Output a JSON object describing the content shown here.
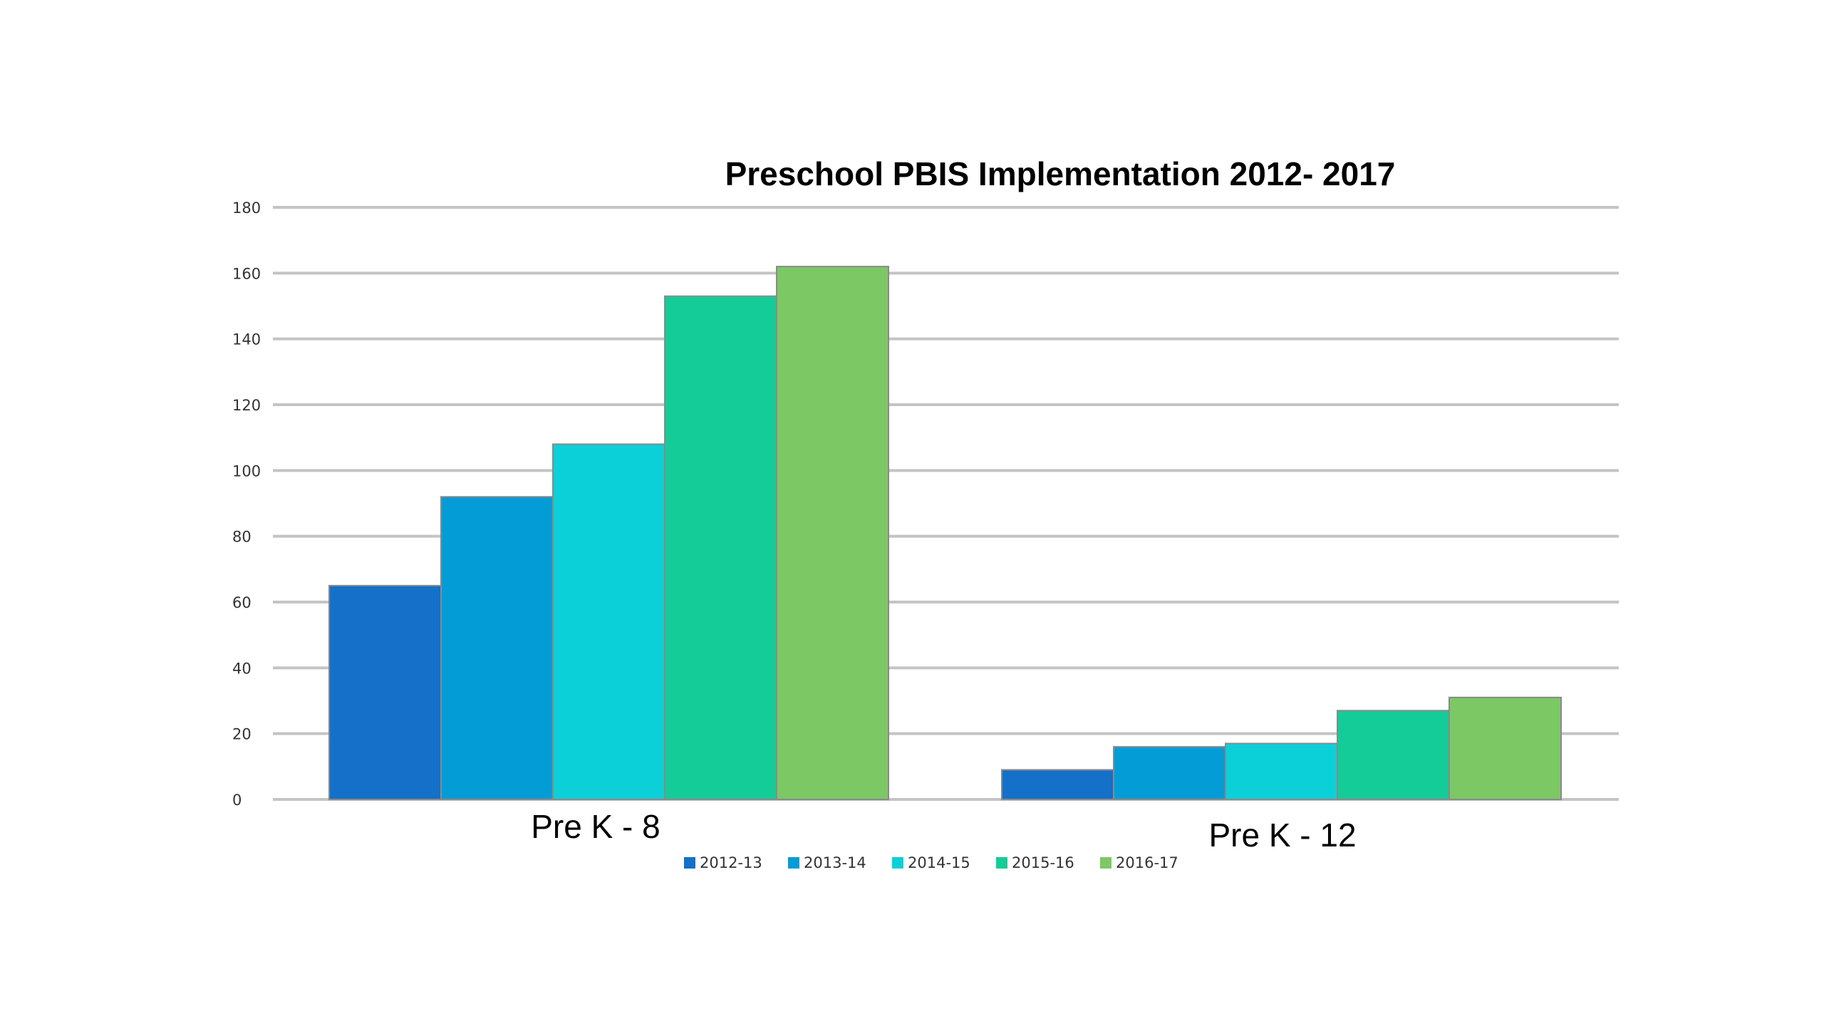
{
  "chart_data": {
    "type": "bar",
    "title": "Preschool PBIS Implementation 2012- 2017",
    "xlabel": "",
    "ylabel": "",
    "ylim": [
      0,
      180
    ],
    "yticks": [
      0,
      20,
      40,
      60,
      80,
      100,
      120,
      140,
      160,
      180
    ],
    "grid": true,
    "legend_position": "bottom",
    "categories": [
      "Pre K - 8",
      "Pre K - 12"
    ],
    "series": [
      {
        "name": "2012-13",
        "values": [
          65,
          9
        ],
        "color": "#1470c8"
      },
      {
        "name": "2013-14",
        "values": [
          92,
          16
        ],
        "color": "#049cd6"
      },
      {
        "name": "2014-15",
        "values": [
          108,
          17
        ],
        "color": "#0cd0d8"
      },
      {
        "name": "2015-16",
        "values": [
          153,
          27
        ],
        "color": "#14cc98"
      },
      {
        "name": "2016-17",
        "values": [
          162,
          31
        ],
        "color": "#7cc864"
      }
    ]
  }
}
